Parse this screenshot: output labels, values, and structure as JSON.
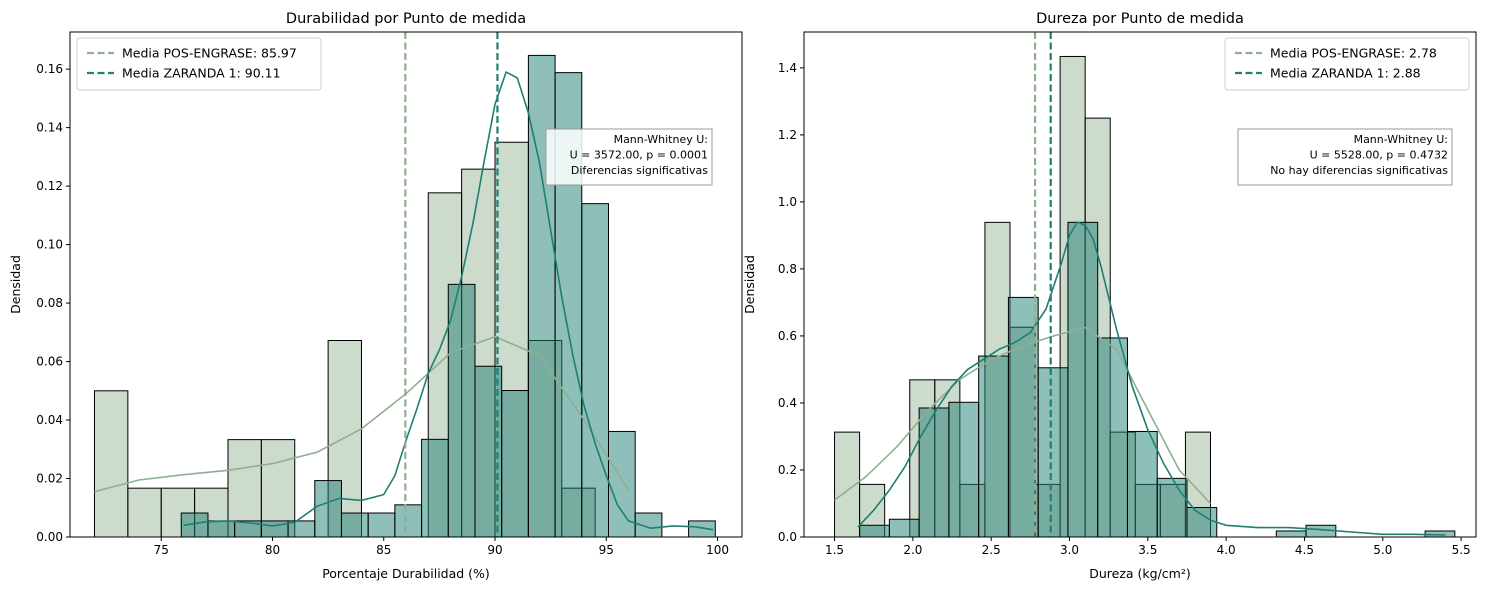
{
  "chart_data": [
    {
      "type": "histogram",
      "title": "Durabilidad por Punto de medida",
      "xlabel": "Porcentaje Durabilidad (%)",
      "ylabel": "Densidad",
      "xlim": [
        70.9,
        101.1
      ],
      "ylim": [
        0,
        0.1727
      ],
      "xticks": [
        75,
        80,
        85,
        90,
        95,
        100
      ],
      "yticks": [
        0.0,
        0.02,
        0.04,
        0.06,
        0.08,
        0.1,
        0.12,
        0.14,
        0.16
      ],
      "tick_format": {
        "x": 0,
        "y": 2
      },
      "legend_position": "upper left",
      "series": [
        {
          "name": "POS-ENGRASE",
          "color": "#8FAF8F",
          "bin_edges": [
            72.0,
            73.5,
            75.0,
            76.5,
            78.0,
            79.5,
            81.0,
            82.5,
            84.0,
            85.5,
            87.0,
            88.5,
            90.0,
            91.5,
            93.0,
            94.5,
            96.0,
            97.5,
            99.0
          ],
          "densities": [
            0.05,
            0.0167,
            0.0167,
            0.0167,
            0.0333,
            0.0333,
            0.0,
            0.0672,
            0.0,
            0.0,
            0.1177,
            0.1258,
            0.135,
            0.0672,
            0.0167,
            0.0,
            0.0,
            0.0
          ],
          "kde": {
            "x": [
              72,
              74,
              76,
              78,
              80,
              82,
              84,
              86,
              88,
              90,
              92,
              94,
              96
            ],
            "y": [
              0.0155,
              0.0195,
              0.0213,
              0.0228,
              0.0251,
              0.029,
              0.037,
              0.049,
              0.063,
              0.0685,
              0.062,
              0.04,
              0.016
            ]
          },
          "mean": 85.97
        },
        {
          "name": "ZARANDA 1",
          "color": "#1F7F73",
          "bin_edges": [
            75.9,
            77.1,
            78.3,
            79.5,
            80.7,
            81.9,
            83.1,
            84.3,
            85.5,
            86.7,
            87.9,
            89.1,
            90.3,
            91.5,
            92.7,
            93.9,
            95.1,
            96.3,
            97.5,
            98.7,
            99.9
          ],
          "densities": [
            0.0082,
            0.0055,
            0.0055,
            0.0055,
            0.0055,
            0.0193,
            0.0082,
            0.0082,
            0.011,
            0.0334,
            0.0864,
            0.0584,
            0.0501,
            0.1647,
            0.1588,
            0.114,
            0.0361,
            0.0082,
            0.0,
            0.0055,
            0.0028
          ],
          "kde": {
            "x": [
              76,
              77,
              78,
              79,
              80,
              81,
              82,
              83,
              84,
              85,
              85.5,
              86,
              86.5,
              87,
              87.5,
              88,
              88.5,
              89,
              89.5,
              90,
              90.5,
              91,
              91.5,
              92,
              92.5,
              93,
              93.5,
              94,
              94.5,
              95,
              95.5,
              96,
              97,
              98,
              99,
              99.8
            ],
            "y": [
              0.004,
              0.0052,
              0.0055,
              0.0048,
              0.0038,
              0.005,
              0.0105,
              0.0132,
              0.0125,
              0.0145,
              0.021,
              0.033,
              0.044,
              0.056,
              0.064,
              0.074,
              0.089,
              0.107,
              0.128,
              0.148,
              0.159,
              0.157,
              0.145,
              0.128,
              0.105,
              0.082,
              0.062,
              0.045,
              0.032,
              0.021,
              0.011,
              0.0055,
              0.003,
              0.0038,
              0.0035,
              0.0025
            ]
          },
          "mean": 90.11
        }
      ],
      "annotation": [
        "Mann-Whitney U:",
        "U = 3572.00, p = 0.0001",
        "Diferencias significativas"
      ]
    },
    {
      "type": "histogram",
      "title": "Dureza por Punto de medida",
      "xlabel": "Dureza (kg/cm²)",
      "ylabel": "Densidad",
      "xlim": [
        1.305,
        5.595
      ],
      "ylim": [
        0,
        1.507
      ],
      "xticks": [
        1.5,
        2.0,
        2.5,
        3.0,
        3.5,
        4.0,
        4.5,
        5.0,
        5.5
      ],
      "yticks": [
        0.0,
        0.2,
        0.4,
        0.6,
        0.8,
        1.0,
        1.2,
        1.4
      ],
      "tick_format": {
        "x": 1,
        "y": 1
      },
      "legend_position": "upper right",
      "series": [
        {
          "name": "POS-ENGRASE",
          "color": "#8FAF8F",
          "bin_edges": [
            1.5,
            1.66,
            1.82,
            1.98,
            2.14,
            2.3,
            2.46,
            2.62,
            2.78,
            2.94,
            3.1,
            3.26,
            3.42,
            3.58,
            3.74,
            3.9
          ],
          "densities": [
            0.313,
            0.157,
            0.0,
            0.469,
            0.469,
            0.157,
            0.939,
            0.626,
            0.157,
            1.434,
            1.25,
            0.313,
            0.157,
            0.157,
            0.313
          ],
          "kde": {
            "x": [
              1.5,
              1.7,
              1.9,
              2.1,
              2.3,
              2.5,
              2.7,
              2.9,
              3.1,
              3.3,
              3.5,
              3.7,
              3.9
            ],
            "y": [
              0.11,
              0.18,
              0.27,
              0.38,
              0.47,
              0.53,
              0.57,
              0.6,
              0.625,
              0.56,
              0.38,
              0.2,
              0.1
            ]
          },
          "mean": 2.78
        },
        {
          "name": "ZARANDA 1",
          "color": "#1F7F73",
          "bin_edges": [
            1.66,
            1.85,
            2.04,
            2.23,
            2.42,
            2.61,
            2.8,
            2.99,
            3.18,
            3.37,
            3.56,
            3.75,
            3.94,
            4.13,
            4.32,
            4.51,
            4.7,
            4.89,
            5.08,
            5.27,
            5.46
          ],
          "densities": [
            0.035,
            0.053,
            0.385,
            0.402,
            0.54,
            0.715,
            0.505,
            0.939,
            0.594,
            0.315,
            0.175,
            0.088,
            0.0,
            0.0,
            0.018,
            0.035,
            0.0,
            0.0,
            0.0,
            0.018
          ],
          "kde": {
            "x": [
              1.65,
              1.75,
              1.85,
              1.95,
              2.05,
              2.15,
              2.25,
              2.35,
              2.45,
              2.55,
              2.65,
              2.75,
              2.85,
              2.95,
              3.0,
              3.05,
              3.1,
              3.15,
              3.2,
              3.3,
              3.4,
              3.5,
              3.6,
              3.7,
              3.8,
              3.9,
              4.0,
              4.2,
              4.4,
              4.6,
              4.8,
              5.0,
              5.2,
              5.4
            ],
            "y": [
              0.03,
              0.08,
              0.14,
              0.21,
              0.3,
              0.38,
              0.45,
              0.5,
              0.53,
              0.56,
              0.58,
              0.61,
              0.68,
              0.82,
              0.9,
              0.94,
              0.93,
              0.89,
              0.81,
              0.62,
              0.45,
              0.32,
              0.22,
              0.14,
              0.08,
              0.05,
              0.035,
              0.028,
              0.028,
              0.022,
              0.015,
              0.008,
              0.008,
              0.006
            ]
          },
          "mean": 2.88
        }
      ],
      "annotation": [
        "Mann-Whitney U:",
        "U = 5528.00, p = 0.4732",
        "No hay diferencias significativas"
      ]
    }
  ]
}
